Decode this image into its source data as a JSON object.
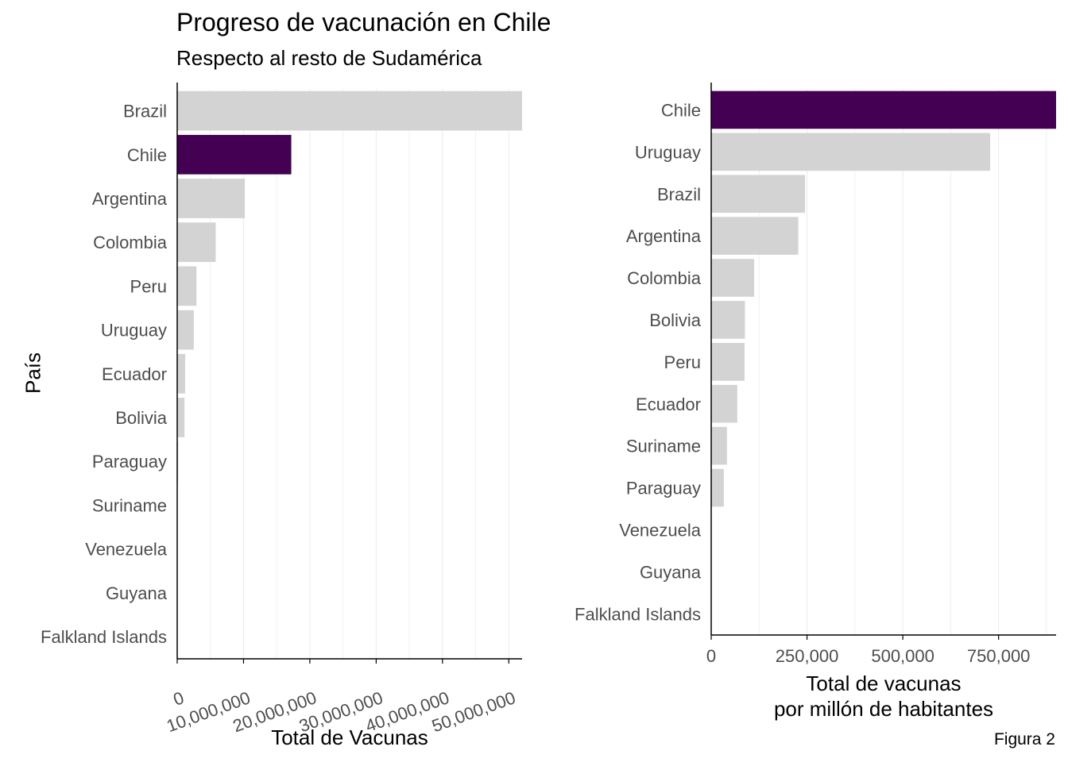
{
  "title": "Progreso de vacunación en Chile",
  "subtitle": "Respecto al resto de Sudamérica",
  "ylabel": "País",
  "caption": "Figura 2",
  "colors": {
    "highlight": "#440154",
    "default": "#d3d3d3",
    "grid": "#ebebeb",
    "axis": "#000000"
  },
  "chart_data": [
    {
      "type": "bar",
      "orientation": "horizontal",
      "xlabel": "Total de Vacunas",
      "xlabel_lines": [
        "Total de Vacunas"
      ],
      "xlim": [
        0,
        52000000
      ],
      "xticks": [
        0,
        10000000,
        20000000,
        30000000,
        40000000,
        50000000
      ],
      "xtick_labels": [
        "0",
        "10,000,000",
        "20,000,000",
        "30,000,000",
        "40,000,000",
        "50,000,000"
      ],
      "tick_rotation": "rotated",
      "categories": [
        "Brazil",
        "Chile",
        "Argentina",
        "Colombia",
        "Peru",
        "Uruguay",
        "Ecuador",
        "Bolivia",
        "Paraguay",
        "Suriname",
        "Venezuela",
        "Guyana",
        "Falkland Islands"
      ],
      "values": [
        52000000,
        17200000,
        10200000,
        5800000,
        2900000,
        2500000,
        1200000,
        1100000,
        150000,
        20000,
        0,
        0,
        0
      ],
      "highlight": "Chile",
      "grid": true
    },
    {
      "type": "bar",
      "orientation": "horizontal",
      "xlabel": "Total de vacunas por millón de habitantes",
      "xlabel_lines": [
        "Total de vacunas",
        "por millón de habitantes"
      ],
      "xlim": [
        0,
        900000
      ],
      "xticks": [
        0,
        250000,
        500000,
        750000
      ],
      "xtick_labels": [
        "0",
        "250,000",
        "500,000",
        "750,000"
      ],
      "tick_rotation": "none",
      "categories": [
        "Chile",
        "Uruguay",
        "Brazil",
        "Argentina",
        "Colombia",
        "Bolivia",
        "Peru",
        "Ecuador",
        "Suriname",
        "Paraguay",
        "Venezuela",
        "Guyana",
        "Falkland Islands"
      ],
      "values": [
        900000,
        728000,
        245000,
        227000,
        112000,
        88000,
        87000,
        68000,
        41000,
        33000,
        0,
        0,
        0
      ],
      "highlight": "Chile",
      "grid": true
    }
  ]
}
